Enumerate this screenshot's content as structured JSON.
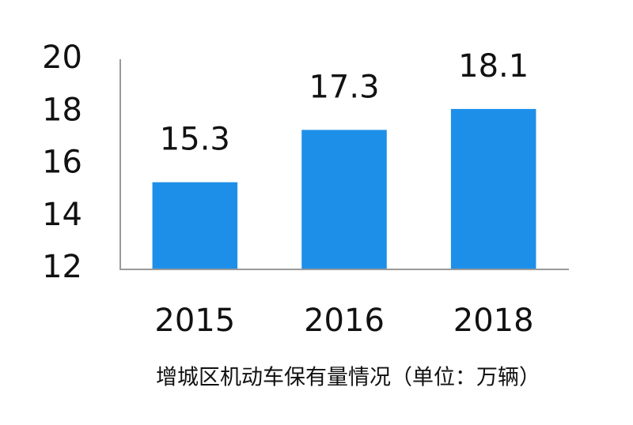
{
  "chart_data": {
    "type": "bar",
    "title": "增城区机动车保有量情况（单位：万辆）",
    "categories": [
      "2015",
      "2016",
      "2018"
    ],
    "values": [
      15.3,
      17.3,
      18.1
    ],
    "color": "#1e8fe9",
    "ylim": [
      12,
      20
    ],
    "yticks": [
      12,
      14,
      16,
      18,
      20
    ],
    "grid": false
  }
}
